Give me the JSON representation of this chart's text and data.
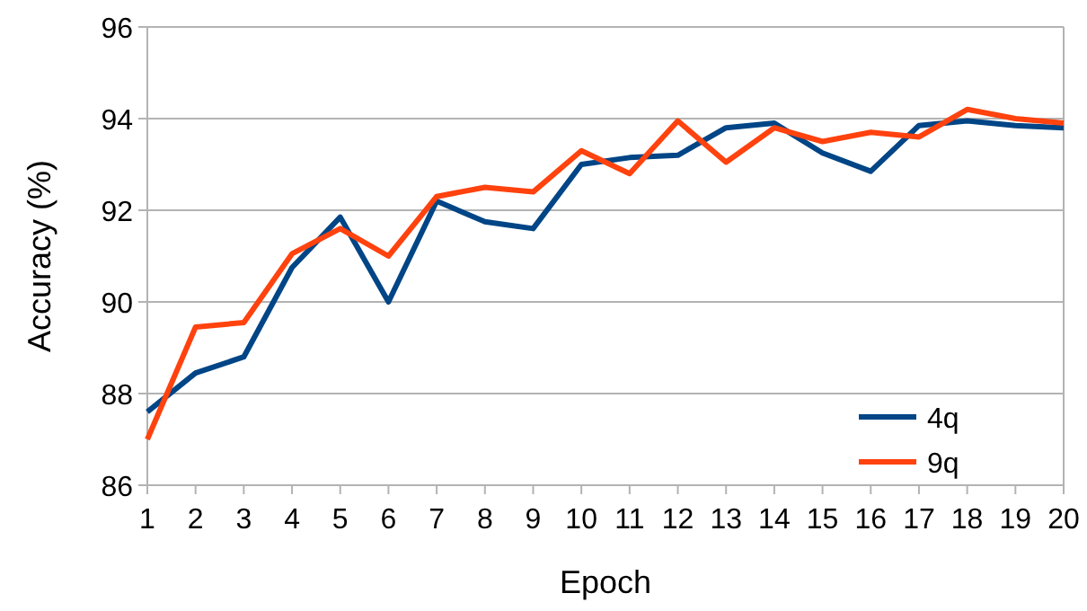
{
  "chart_data": {
    "type": "line",
    "xlabel": "Epoch",
    "ylabel": "Accuracy (%)",
    "x": [
      1,
      2,
      3,
      4,
      5,
      6,
      7,
      8,
      9,
      10,
      11,
      12,
      13,
      14,
      15,
      16,
      17,
      18,
      19,
      20
    ],
    "xlim": [
      1,
      20
    ],
    "xticks": [
      1,
      2,
      3,
      4,
      5,
      6,
      7,
      8,
      9,
      10,
      11,
      12,
      13,
      14,
      15,
      16,
      17,
      18,
      19,
      20
    ],
    "ylim": [
      86,
      96
    ],
    "yticks": [
      86,
      88,
      90,
      92,
      94,
      96
    ],
    "grid": "y",
    "legend": "bottom right",
    "marker": "none",
    "line_style": "solid",
    "series": [
      {
        "name": "4q",
        "color": "#004586",
        "values": [
          87.6,
          88.45,
          88.8,
          90.75,
          91.85,
          90.0,
          92.2,
          91.75,
          91.6,
          93.0,
          93.15,
          93.2,
          93.8,
          93.9,
          93.25,
          92.85,
          93.85,
          93.95,
          93.85,
          93.8
        ]
      },
      {
        "name": "9q",
        "color": "#ff420e",
        "values": [
          87.0,
          89.45,
          89.55,
          91.05,
          91.6,
          91.0,
          92.3,
          92.5,
          92.4,
          93.3,
          92.8,
          93.95,
          93.05,
          93.8,
          93.5,
          93.7,
          93.6,
          94.2,
          94.0,
          93.9
        ]
      }
    ]
  }
}
